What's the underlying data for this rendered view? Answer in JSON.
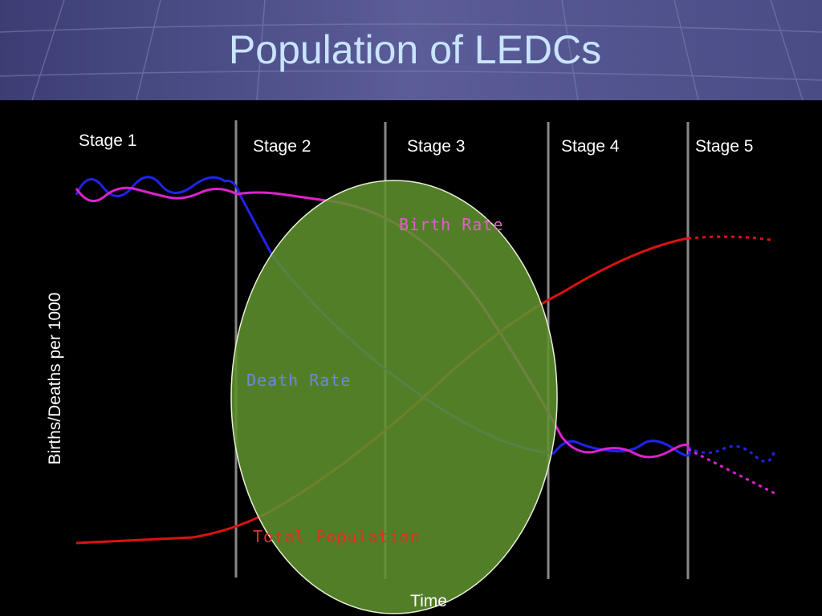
{
  "title": "Population of LEDCs",
  "stages": [
    "Stage 1",
    "Stage 2",
    "Stage 3",
    "Stage 4",
    "Stage 5"
  ],
  "y_axis_label": "Births/Deaths per 1000",
  "x_axis_label": "Time",
  "curve_labels": {
    "birth_rate": "Birth Rate",
    "death_rate": "Death Rate",
    "total_population": "Total Population"
  }
}
